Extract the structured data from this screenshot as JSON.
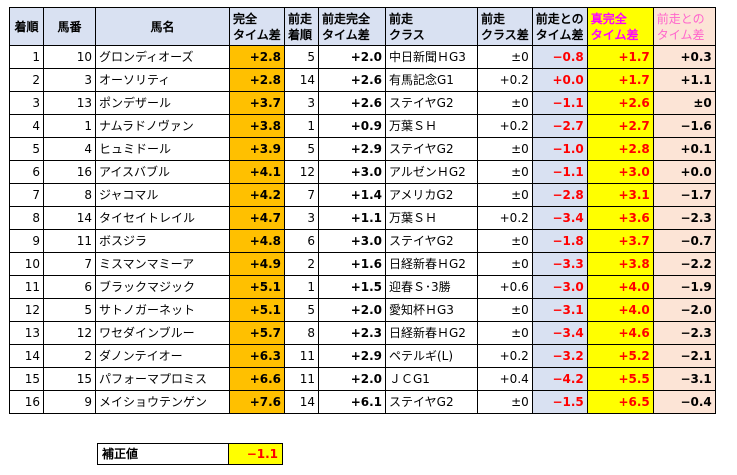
{
  "headers": {
    "finish": "着順",
    "horse_no": "馬番",
    "horse_name": "馬名",
    "full_time_diff": "完全\nタイム差",
    "prev_finish": "前走\n着順",
    "prev_full_time_diff": "前走完全\nタイム差",
    "prev_class": "前走\nクラス",
    "prev_class_diff": "前走\nクラス差",
    "prev_time_diff": "前走との\nタイム差",
    "true_full_time_diff": "真完全\nタイム差",
    "prev_diff_pink": "前走との\nタイム差"
  },
  "rows": [
    {
      "finish": "1",
      "horse_no": "10",
      "name": "グロンディオーズ",
      "full": "+2.8",
      "prev_finish": "5",
      "prev_full": "+2.0",
      "prev_class": "中日新聞ＨG3",
      "class_diff": "±0",
      "time_diff": "−0.8",
      "true_full": "+1.7",
      "pink": "+0.3"
    },
    {
      "finish": "2",
      "horse_no": "3",
      "name": "オーソリティ",
      "full": "+2.8",
      "prev_finish": "14",
      "prev_full": "+2.6",
      "prev_class": "有馬記念G1",
      "class_diff": "+0.2",
      "time_diff": "+0.0",
      "true_full": "+1.7",
      "pink": "+1.1"
    },
    {
      "finish": "3",
      "horse_no": "13",
      "name": "ポンデザール",
      "full": "+3.7",
      "prev_finish": "3",
      "prev_full": "+2.6",
      "prev_class": "ステイヤG2",
      "class_diff": "±0",
      "time_diff": "−1.1",
      "true_full": "+2.6",
      "pink": "±0"
    },
    {
      "finish": "4",
      "horse_no": "1",
      "name": "ナムラドノヴァン",
      "full": "+3.8",
      "prev_finish": "1",
      "prev_full": "+0.9",
      "prev_class": "万葉ＳＨ",
      "class_diff": "+0.2",
      "time_diff": "−2.7",
      "true_full": "+2.7",
      "pink": "−1.6"
    },
    {
      "finish": "5",
      "horse_no": "4",
      "name": "ヒュミドール",
      "full": "+3.9",
      "prev_finish": "5",
      "prev_full": "+2.9",
      "prev_class": "ステイヤG2",
      "class_diff": "±0",
      "time_diff": "−1.0",
      "true_full": "+2.8",
      "pink": "+0.1"
    },
    {
      "finish": "6",
      "horse_no": "16",
      "name": "アイスバブル",
      "full": "+4.1",
      "prev_finish": "12",
      "prev_full": "+3.0",
      "prev_class": "アルゼンＨG2",
      "class_diff": "±0",
      "time_diff": "−1.1",
      "true_full": "+3.0",
      "pink": "+0.0"
    },
    {
      "finish": "7",
      "horse_no": "8",
      "name": "ジャコマル",
      "full": "+4.2",
      "prev_finish": "7",
      "prev_full": "+1.4",
      "prev_class": "アメリカG2",
      "class_diff": "±0",
      "time_diff": "−2.8",
      "true_full": "+3.1",
      "pink": "−1.7"
    },
    {
      "finish": "8",
      "horse_no": "14",
      "name": "タイセイトレイル",
      "full": "+4.7",
      "prev_finish": "3",
      "prev_full": "+1.1",
      "prev_class": "万葉ＳＨ",
      "class_diff": "+0.2",
      "time_diff": "−3.4",
      "true_full": "+3.6",
      "pink": "−2.3"
    },
    {
      "finish": "9",
      "horse_no": "11",
      "name": "ボスジラ",
      "full": "+4.8",
      "prev_finish": "6",
      "prev_full": "+3.0",
      "prev_class": "ステイヤG2",
      "class_diff": "±0",
      "time_diff": "−1.8",
      "true_full": "+3.7",
      "pink": "−0.7"
    },
    {
      "finish": "10",
      "horse_no": "7",
      "name": "ミスマンマミーア",
      "full": "+4.9",
      "prev_finish": "2",
      "prev_full": "+1.6",
      "prev_class": "日経新春ＨG2",
      "class_diff": "±0",
      "time_diff": "−3.3",
      "true_full": "+3.8",
      "pink": "−2.2"
    },
    {
      "finish": "11",
      "horse_no": "6",
      "name": "ブラックマジック",
      "full": "+5.1",
      "prev_finish": "1",
      "prev_full": "+1.5",
      "prev_class": "迎春Ｓ･3勝",
      "class_diff": "+0.6",
      "time_diff": "−3.0",
      "true_full": "+4.0",
      "pink": "−1.9"
    },
    {
      "finish": "12",
      "horse_no": "5",
      "name": "サトノガーネット",
      "full": "+5.1",
      "prev_finish": "5",
      "prev_full": "+2.0",
      "prev_class": "愛知杯ＨG3",
      "class_diff": "±0",
      "time_diff": "−3.1",
      "true_full": "+4.0",
      "pink": "−2.0"
    },
    {
      "finish": "13",
      "horse_no": "12",
      "name": "ワセダインブルー",
      "full": "+5.7",
      "prev_finish": "8",
      "prev_full": "+2.3",
      "prev_class": "日経新春ＨG2",
      "class_diff": "±0",
      "time_diff": "−3.4",
      "true_full": "+4.6",
      "pink": "−2.3"
    },
    {
      "finish": "14",
      "horse_no": "2",
      "name": "ダノンテイオー",
      "full": "+6.3",
      "prev_finish": "11",
      "prev_full": "+2.9",
      "prev_class": "ペテルギ(L)",
      "class_diff": "+0.2",
      "time_diff": "−3.2",
      "true_full": "+5.2",
      "pink": "−2.1"
    },
    {
      "finish": "15",
      "horse_no": "15",
      "name": "パフォーマプロミス",
      "full": "+6.6",
      "prev_finish": "11",
      "prev_full": "+2.0",
      "prev_class": "ＪＣG1",
      "class_diff": "+0.4",
      "time_diff": "−4.2",
      "true_full": "+5.5",
      "pink": "−3.1"
    },
    {
      "finish": "16",
      "horse_no": "9",
      "name": "メイショウテンゲン",
      "full": "+7.6",
      "prev_finish": "14",
      "prev_full": "+6.1",
      "prev_class": "ステイヤG2",
      "class_diff": "±0",
      "time_diff": "−1.5",
      "true_full": "+6.5",
      "pink": "−0.4"
    }
  ],
  "correction": {
    "label": "補正値",
    "value": "−1.1"
  },
  "colors": {
    "header_blue": "#d9e1f2",
    "orange": "#ffc000",
    "yellow": "#ffff00",
    "pink": "#fce4d6",
    "red_text": "#ff0000",
    "magenta_text": "#ff00ff"
  }
}
